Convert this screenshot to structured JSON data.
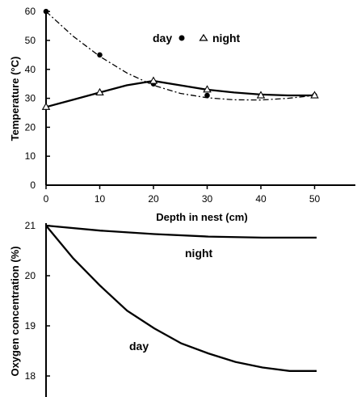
{
  "chart_data": [
    {
      "type": "line",
      "title": "",
      "xlabel": "Depth in nest (cm)",
      "ylabel": "Temperature (°C)",
      "xlim": [
        0,
        55
      ],
      "ylim": [
        0,
        60
      ],
      "xticks": [
        "0",
        "10",
        "20",
        "30",
        "40",
        "50"
      ],
      "yticks": [
        "0",
        "10",
        "20",
        "30",
        "40",
        "50",
        "60"
      ],
      "legend": {
        "placement": "top-right",
        "day_label": "day",
        "night_label": "night"
      },
      "series": [
        {
          "name": "day",
          "marker": "filled-circle",
          "line": "dash-dot",
          "x": [
            0,
            10,
            20,
            30,
            50
          ],
          "y": [
            60,
            45,
            35,
            31,
            31
          ],
          "curve_x": [
            0,
            5,
            10,
            15,
            20,
            25,
            30,
            35,
            40,
            45,
            50
          ],
          "curve_y": [
            60,
            51.5,
            44.5,
            38.8,
            34.5,
            31.7,
            30.2,
            29.5,
            29.4,
            30,
            31
          ]
        },
        {
          "name": "night",
          "marker": "open-triangle",
          "line": "solid",
          "x": [
            0,
            10,
            20,
            30,
            40,
            50
          ],
          "y": [
            27,
            32,
            36,
            33,
            31,
            31
          ],
          "curve_x": [
            0,
            5,
            10,
            15,
            20,
            25,
            30,
            35,
            40,
            45,
            50
          ],
          "curve_y": [
            27,
            29.5,
            32,
            34.5,
            36,
            34.5,
            33,
            32,
            31.3,
            31,
            31
          ]
        }
      ]
    },
    {
      "type": "line",
      "title": "",
      "xlabel": "",
      "ylabel": "Oxygen concentration (%)",
      "xlim": [
        0,
        55
      ],
      "ylim": [
        17.8,
        21
      ],
      "yticks": [
        "18",
        "19",
        "20",
        "21"
      ],
      "series_labels": {
        "night": "night",
        "day": "day"
      },
      "series": [
        {
          "name": "night",
          "line": "solid",
          "x": [
            0,
            10,
            20,
            30,
            40,
            50
          ],
          "y": [
            21,
            20.9,
            20.83,
            20.78,
            20.76,
            20.76
          ]
        },
        {
          "name": "day",
          "line": "solid",
          "x": [
            0,
            5,
            10,
            15,
            20,
            25,
            30,
            35,
            40,
            45,
            50
          ],
          "y": [
            21,
            20.35,
            19.8,
            19.3,
            18.95,
            18.65,
            18.45,
            18.28,
            18.17,
            18.1,
            18.1
          ]
        }
      ]
    }
  ]
}
